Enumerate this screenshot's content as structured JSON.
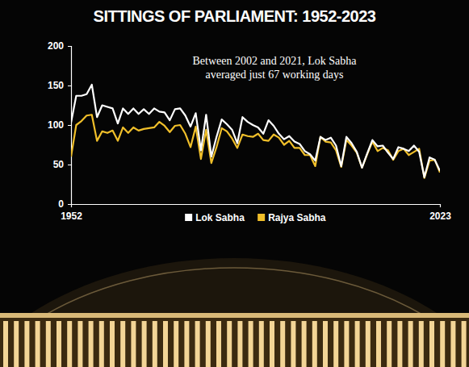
{
  "chart_data": {
    "type": "line",
    "title": "SITTINGS OF PARLIAMENT: 1952-2023",
    "annotations": [
      "Between 2002 and 2021, Lok Sabha averaged just 67 working days"
    ],
    "x": [
      1952,
      1953,
      1954,
      1955,
      1956,
      1957,
      1958,
      1959,
      1960,
      1961,
      1962,
      1963,
      1964,
      1965,
      1966,
      1967,
      1968,
      1969,
      1970,
      1971,
      1972,
      1973,
      1974,
      1975,
      1976,
      1977,
      1978,
      1979,
      1980,
      1981,
      1982,
      1983,
      1984,
      1985,
      1986,
      1987,
      1988,
      1989,
      1990,
      1991,
      1992,
      1993,
      1994,
      1995,
      1996,
      1997,
      1998,
      1999,
      2000,
      2001,
      2002,
      2003,
      2004,
      2005,
      2006,
      2007,
      2008,
      2009,
      2010,
      2011,
      2012,
      2013,
      2014,
      2015,
      2016,
      2017,
      2018,
      2019,
      2020,
      2021,
      2022,
      2023
    ],
    "series": [
      {
        "name": "Lok Sabha",
        "color": "#ffffff",
        "values": [
          103,
          137,
          137,
          139,
          151,
          110,
          125,
          123,
          121,
          102,
          121,
          114,
          121,
          114,
          120,
          114,
          121,
          117,
          116,
          106,
          120,
          121,
          112,
          98,
          115,
          68,
          113,
          60,
          85,
          107,
          101,
          94,
          77,
          110,
          104,
          100,
          97,
          89,
          106,
          99,
          89,
          82,
          86,
          79,
          76,
          67,
          63,
          55,
          85,
          81,
          84,
          74,
          48,
          85,
          77,
          66,
          46,
          64,
          81,
          73,
          74,
          65,
          57,
          72,
          70,
          67,
          74,
          66,
          34,
          59,
          56,
          42
        ]
      },
      {
        "name": "Rajya Sabha",
        "color": "#f0bf2a",
        "values": [
          60,
          100,
          105,
          112,
          113,
          80,
          92,
          90,
          93,
          80,
          97,
          90,
          97,
          93,
          95,
          96,
          97,
          104,
          99,
          91,
          99,
          100,
          89,
          72,
          98,
          57,
          94,
          52,
          72,
          96,
          92,
          83,
          71,
          88,
          86,
          85,
          89,
          81,
          80,
          88,
          84,
          75,
          80,
          71,
          71,
          62,
          62,
          48,
          85,
          79,
          78,
          68,
          47,
          81,
          74,
          65,
          46,
          63,
          79,
          67,
          71,
          68,
          56,
          67,
          70,
          62,
          66,
          70,
          33,
          55,
          56,
          40
        ]
      }
    ],
    "xlim": [
      1952,
      2023
    ],
    "xticks": [
      1952,
      2023
    ],
    "ylim": [
      0,
      200
    ],
    "yticks": [
      0,
      50,
      100,
      150,
      200
    ],
    "grid": false,
    "legend": "bottom"
  }
}
